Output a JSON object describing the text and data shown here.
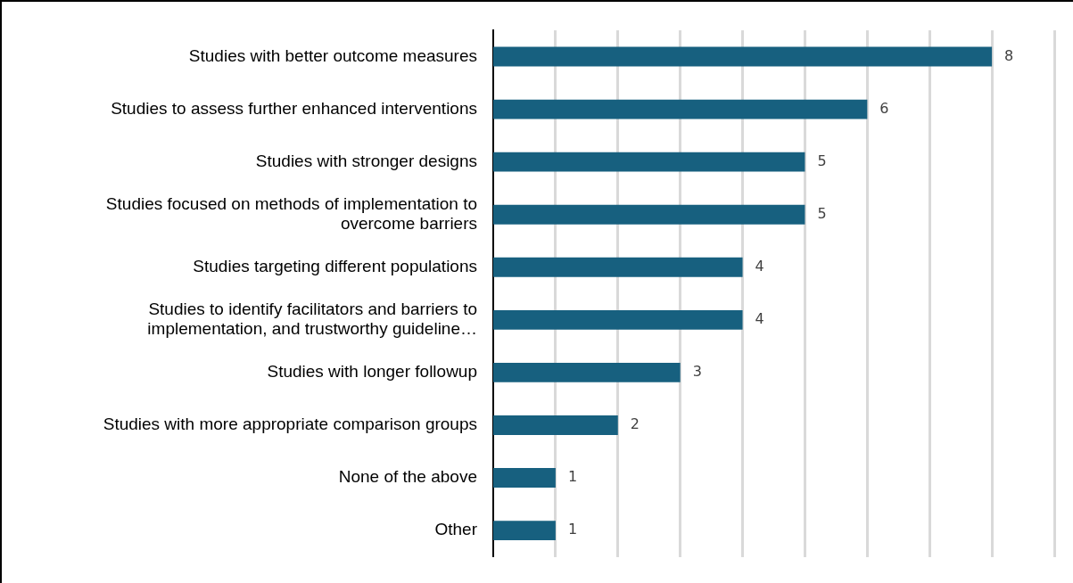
{
  "chart_data": {
    "type": "bar",
    "orientation": "horizontal",
    "categories": [
      "Studies with better outcome measures",
      "Studies to assess further enhanced interventions",
      "Studies with stronger designs",
      "Studies focused on methods of implementation to\novercome barriers",
      "Studies targeting different populations",
      "Studies to identify facilitators and barriers to\nimplementation, and trustworthy guideline…",
      "Studies with longer followup",
      "Studies with more appropriate comparison groups",
      "None of the above",
      "Other"
    ],
    "values": [
      8,
      6,
      5,
      5,
      4,
      4,
      3,
      2,
      1,
      1
    ],
    "color": "#17607f",
    "xlim": [
      0,
      9
    ],
    "xticks": [
      {
        "value": 1,
        "label": null
      },
      {
        "value": 2,
        "label": null
      },
      {
        "value": 3,
        "label": null
      },
      {
        "value": 4,
        "label": null
      },
      {
        "value": 5,
        "label": null
      },
      {
        "value": 6,
        "label": null
      },
      {
        "value": 7,
        "label": null
      },
      {
        "value": 8,
        "label": null
      },
      {
        "value": 9,
        "label": null
      }
    ],
    "tick_labels": "y",
    "grid": "x",
    "legend": false,
    "data_labels": true
  }
}
